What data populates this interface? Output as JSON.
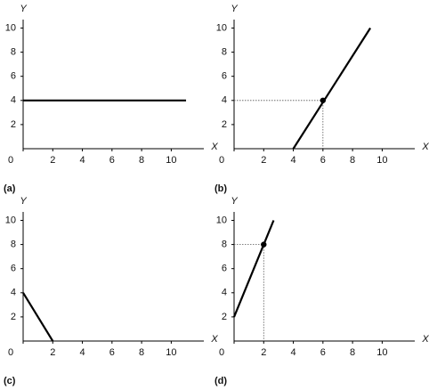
{
  "chart_data": [
    {
      "type": "line",
      "label": "(a)",
      "xlabel": "X",
      "ylabel": "Y",
      "x": [
        0,
        11
      ],
      "values": [
        4,
        4
      ],
      "color": "#000000",
      "xlim": [
        0,
        12.2
      ],
      "ylim": [
        0,
        10.7
      ],
      "xticks": [
        0,
        2,
        4,
        6,
        8,
        10
      ],
      "yticks": [
        2,
        4,
        6,
        8,
        10
      ]
    },
    {
      "type": "line",
      "label": "(b)",
      "xlabel": "X",
      "ylabel": "Y",
      "x": [
        4,
        9.2
      ],
      "values": [
        0,
        10
      ],
      "color": "#000000",
      "xlim": [
        0,
        12.2
      ],
      "ylim": [
        0,
        10.7
      ],
      "xticks": [
        0,
        2,
        4,
        6,
        8,
        10
      ],
      "yticks": [
        2,
        4,
        6,
        8,
        10
      ],
      "points": {
        "x": [
          6
        ],
        "y": [
          4
        ]
      }
    },
    {
      "type": "line",
      "label": "(c)",
      "xlabel": "X",
      "ylabel": "Y",
      "x": [
        0,
        2
      ],
      "values": [
        4,
        0
      ],
      "color": "#000000",
      "xlim": [
        0,
        12.2
      ],
      "ylim": [
        0,
        10.7
      ],
      "xticks": [
        0,
        2,
        4,
        6,
        8,
        10
      ],
      "yticks": [
        2,
        4,
        6,
        8,
        10
      ]
    },
    {
      "type": "line",
      "label": "(d)",
      "xlabel": "X",
      "ylabel": "Y",
      "x": [
        0,
        2.67
      ],
      "values": [
        2,
        10
      ],
      "color": "#000000",
      "xlim": [
        0,
        12.2
      ],
      "ylim": [
        0,
        10.7
      ],
      "xticks": [
        0,
        2,
        4,
        6,
        8,
        10
      ],
      "yticks": [
        2,
        4,
        6,
        8,
        10
      ],
      "points": {
        "x": [
          2
        ],
        "y": [
          8
        ]
      }
    }
  ]
}
